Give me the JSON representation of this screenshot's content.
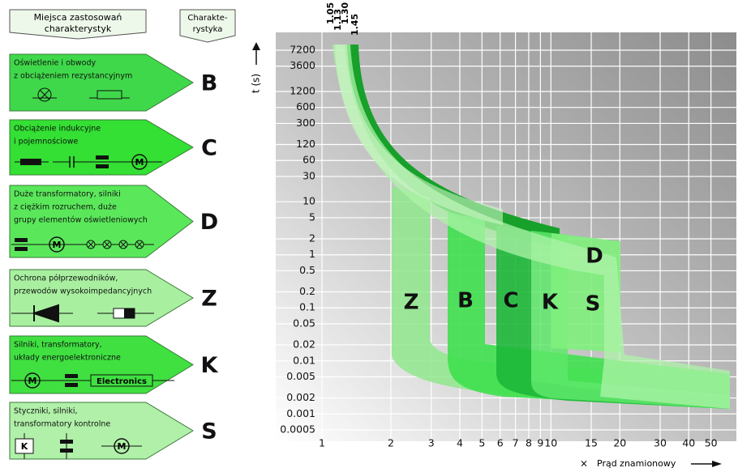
{
  "header": {
    "title_lines": [
      "Miejsca zastosowań",
      "charakterystyk"
    ],
    "characteristic_lines": [
      "Charakte-",
      "rystyka"
    ]
  },
  "rows": [
    {
      "lines": [
        "Oświetlenie i obwody",
        "z obciążeniem rezystancyjnym"
      ],
      "letter": "B"
    },
    {
      "lines": [
        "Obciążenie indukcyjne",
        "i pojemnościowe"
      ],
      "letter": "C",
      "symbol_labels": [
        "M"
      ]
    },
    {
      "lines": [
        "Duże transformatory, silniki",
        "z ciężkim rozruchem, duże",
        "grupy elementów oświetleniowych"
      ],
      "letter": "D",
      "symbol_labels": [
        "M"
      ]
    },
    {
      "lines": [
        "Ochrona półprzewodników,",
        "przewodów wysokoimpedancyjnych"
      ],
      "letter": "Z"
    },
    {
      "lines": [
        "Silniki, transformatory,",
        "układy energoelektroniczne"
      ],
      "letter": "K",
      "symbol_labels": [
        "M",
        "Electronics"
      ]
    },
    {
      "lines": [
        "Styczniki, silniki,",
        "transformatory kontrolne"
      ],
      "letter": "S",
      "symbol_labels": [
        "K",
        "M"
      ]
    }
  ],
  "axis": {
    "y_label": "t (s)",
    "x_label": "Prąd znamionowy",
    "x_prefix": "×",
    "log": true,
    "ylim": [
      0.0005,
      7200
    ],
    "xlim": [
      1,
      60
    ],
    "yticks": [
      7200,
      3600,
      1200,
      600,
      300,
      120,
      60,
      30,
      10,
      5,
      2,
      1,
      0.5,
      0.2,
      0.1,
      0.05,
      0.02,
      0.01,
      0.005,
      0.002,
      0.001,
      0.0005
    ],
    "xticks": [
      1,
      2,
      3,
      4,
      5,
      6,
      7,
      8,
      9,
      10,
      15,
      20,
      30,
      40,
      50
    ]
  },
  "top_labels": [
    "1.05",
    "1.13",
    "1.30",
    "1.45"
  ],
  "zone_labels": [
    "Z",
    "B",
    "C",
    "K",
    "S",
    "D"
  ]
}
